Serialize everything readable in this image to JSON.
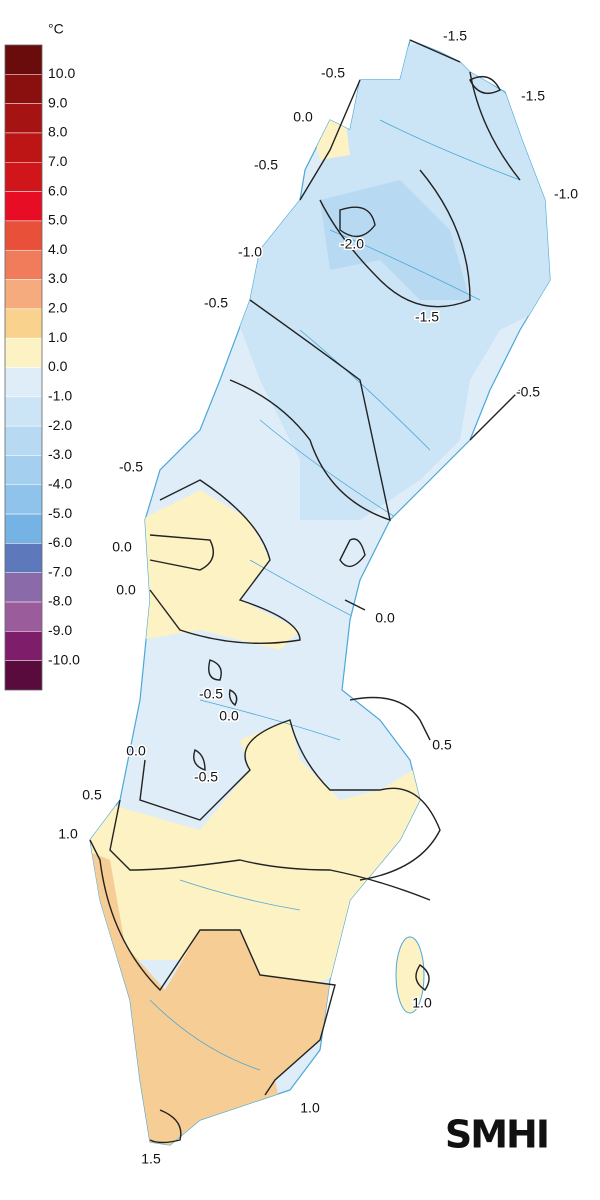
{
  "legend": {
    "unit": "°C",
    "labels": [
      "10.0",
      "9.0",
      "8.0",
      "7.0",
      "6.0",
      "5.0",
      "4.0",
      "3.0",
      "2.0",
      "1.0",
      "0.0",
      "-1.0",
      "-2.0",
      "-3.0",
      "-4.0",
      "-5.0",
      "-6.0",
      "-7.0",
      "-8.0",
      "-9.0",
      "-10.0"
    ],
    "colors": [
      "#6b0c0c",
      "#8a0f0f",
      "#a51313",
      "#bd1515",
      "#d0161b",
      "#e60d25",
      "#e8503a",
      "#f07c5c",
      "#f6ab7e",
      "#f9d38e",
      "#fdf2c4",
      "#deedf8",
      "#cbe4f6",
      "#b8d9f2",
      "#a5cfef",
      "#8fc3ec",
      "#76b3e5",
      "#5d78bb",
      "#8a6aa8",
      "#9b5c9c",
      "#7e1e6a",
      "#5a0b3d"
    ]
  },
  "map": {
    "contour_labels": [
      "-1.5",
      "-0.5",
      "-1.5",
      "0.0",
      "-0.5",
      "-1.0",
      "-2.0",
      "-1.0",
      "-0.5",
      "-1.5",
      "-0.5",
      "-0.5",
      "0.0",
      "0.0",
      "0.0",
      "-0.5",
      "0.0",
      "0.5",
      "0.0",
      "-0.5",
      "0.5",
      "1.0",
      "1.0",
      "1.0",
      "1.5"
    ]
  },
  "logo": "SMHI"
}
